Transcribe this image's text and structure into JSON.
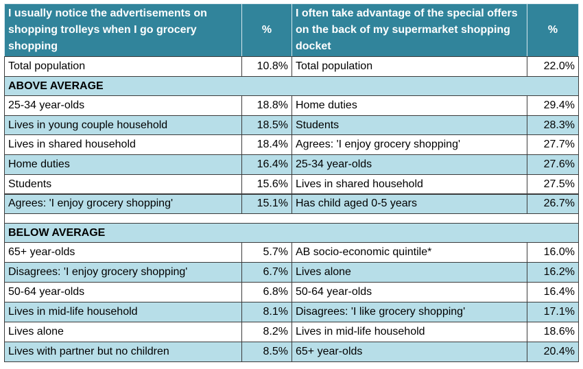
{
  "header": {
    "left_title": "I usually notice the advertisements on shopping trolleys when I go grocery shopping",
    "left_unit": "%",
    "right_title": "I often take advantage of the special offers on the back of my supermarket shopping docket",
    "right_unit": "%"
  },
  "total": [
    "Total population",
    "10.8%",
    "Total population",
    "22.0%"
  ],
  "sections": [
    {
      "title": "ABOVE AVERAGE",
      "rows": [
        [
          "25-34 year-olds",
          "18.8%",
          "Home duties",
          "29.4%"
        ],
        [
          "Lives in young couple household",
          "18.5%",
          "Students",
          "28.3%"
        ],
        [
          "Lives in shared household",
          "18.4%",
          "Agrees: 'I enjoy grocery shopping'",
          "27.7%"
        ],
        [
          "Home duties",
          "16.4%",
          "25-34 year-olds",
          "27.6%"
        ],
        [
          "Students",
          "15.6%",
          "Lives in shared household",
          "27.5%"
        ],
        [
          "Agrees: 'I enjoy grocery shopping'",
          "15.1%",
          "Has child aged 0-5 years",
          "26.7%"
        ]
      ]
    },
    {
      "title": "BELOW AVERAGE",
      "rows": [
        [
          "65+ year-olds",
          "5.7%",
          "AB socio-economic quintile*",
          "16.0%"
        ],
        [
          "Disagrees: 'I enjoy grocery shopping'",
          "6.7%",
          "Lives alone",
          "16.2%"
        ],
        [
          "50-64 year-olds",
          "6.8%",
          "50-64 year-olds",
          "16.4%"
        ],
        [
          "Lives in mid-life household",
          "8.1%",
          "Disagrees: 'I like grocery shopping'",
          "17.1%"
        ],
        [
          "Lives alone",
          "8.2%",
          "Lives in mid-life household",
          "18.6%"
        ],
        [
          "Lives with partner but no children",
          "8.5%",
          "65+ year-olds",
          "20.4%"
        ]
      ]
    }
  ]
}
